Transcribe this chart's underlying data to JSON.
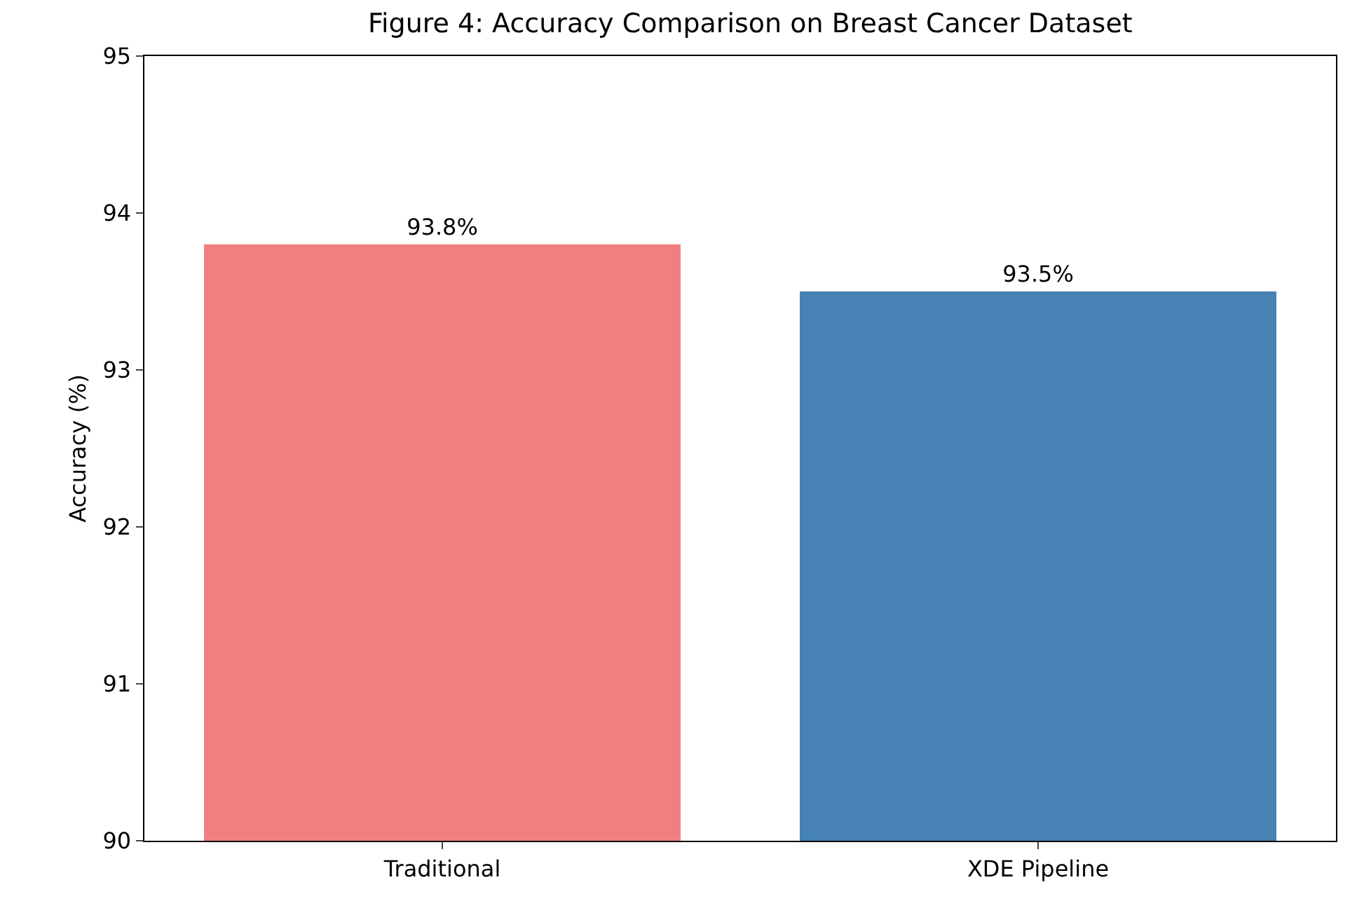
{
  "chart_data": {
    "type": "bar",
    "title": "Figure 4: Accuracy Comparison on Breast Cancer Dataset",
    "ylabel": "Accuracy (%)",
    "categories": [
      "Traditional",
      "XDE Pipeline"
    ],
    "values": [
      93.8,
      93.5
    ],
    "colors": [
      "#f08080",
      "#4682b4"
    ],
    "value_labels": [
      "93.8%",
      "93.5%"
    ],
    "ylim": [
      90,
      95
    ],
    "yticks": [
      90,
      91,
      92,
      93,
      94,
      95
    ],
    "grid": false
  }
}
